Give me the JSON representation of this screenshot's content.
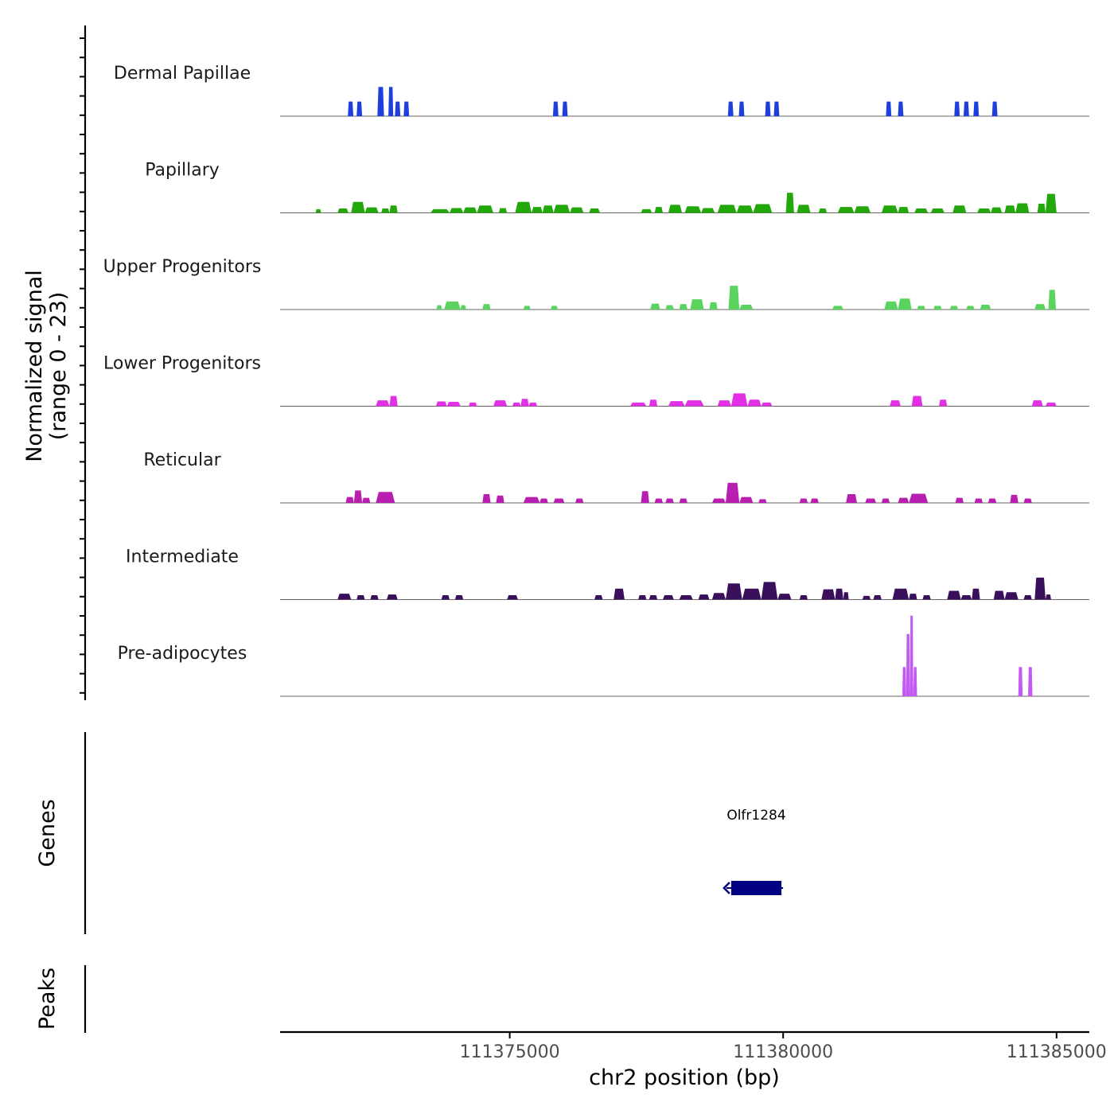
{
  "chart_data": {
    "type": "area",
    "title": "",
    "chromosome": "chr2",
    "xlabel": "chr2 position (bp)",
    "ylabel": "Normalized signal",
    "ylabel_range": "(range 0 - 23)",
    "ylim": [
      0,
      23
    ],
    "xlim": [
      111370800,
      111385600
    ],
    "x_ticks": [
      111375000,
      111380000,
      111385000
    ],
    "x_tick_labels": [
      "111375000",
      "111380000",
      "111385000"
    ],
    "tracks": [
      {
        "name": "Dermal Papillae",
        "color": "#1f3fdc",
        "peaks": [
          [
            111372040,
            111372140,
            4
          ],
          [
            111372200,
            111372300,
            4
          ],
          [
            111372580,
            111372700,
            8
          ],
          [
            111372780,
            111372870,
            8
          ],
          [
            111372900,
            111373000,
            4
          ],
          [
            111373060,
            111373160,
            4
          ],
          [
            111375790,
            111375890,
            4
          ],
          [
            111375960,
            111376060,
            4
          ],
          [
            111378990,
            111379090,
            4
          ],
          [
            111379190,
            111379290,
            4
          ],
          [
            111379670,
            111379770,
            4
          ],
          [
            111379830,
            111379930,
            4
          ],
          [
            111381880,
            111381980,
            4
          ],
          [
            111382100,
            111382200,
            4
          ],
          [
            111383130,
            111383230,
            4
          ],
          [
            111383300,
            111383400,
            4
          ],
          [
            111383480,
            111383580,
            4
          ],
          [
            111383820,
            111383920,
            4
          ]
        ]
      },
      {
        "name": "Papillary",
        "color": "#22a80a",
        "peaks": [
          [
            111371450,
            111371550,
            1
          ],
          [
            111371850,
            111372050,
            1.2
          ],
          [
            111372100,
            111372350,
            3
          ],
          [
            111372350,
            111372600,
            1.5
          ],
          [
            111372650,
            111372800,
            1.2
          ],
          [
            111372800,
            111372950,
            2
          ],
          [
            111373550,
            111373900,
            1
          ],
          [
            111373900,
            111374150,
            1.3
          ],
          [
            111374150,
            111374400,
            1.5
          ],
          [
            111374400,
            111374700,
            2
          ],
          [
            111374800,
            111374950,
            1.3
          ],
          [
            111375100,
            111375400,
            3
          ],
          [
            111375400,
            111375600,
            1.6
          ],
          [
            111375600,
            111375800,
            2
          ],
          [
            111375800,
            111376100,
            2.2
          ],
          [
            111376100,
            111376350,
            1.5
          ],
          [
            111376450,
            111376650,
            1.2
          ],
          [
            111377400,
            111377600,
            1
          ],
          [
            111377650,
            111377800,
            1.6
          ],
          [
            111377900,
            111378150,
            2.2
          ],
          [
            111378200,
            111378500,
            1.8
          ],
          [
            111378500,
            111378750,
            1.3
          ],
          [
            111378800,
            111379150,
            2.2
          ],
          [
            111379150,
            111379450,
            2
          ],
          [
            111379450,
            111379800,
            2.4
          ],
          [
            111380050,
            111380200,
            5.5
          ],
          [
            111380250,
            111380500,
            2.2
          ],
          [
            111380650,
            111380800,
            1.2
          ],
          [
            111381000,
            111381300,
            1.6
          ],
          [
            111381300,
            111381600,
            1.8
          ],
          [
            111381800,
            111382100,
            2
          ],
          [
            111382100,
            111382300,
            1.6
          ],
          [
            111382400,
            111382650,
            1.2
          ],
          [
            111382700,
            111382950,
            1.2
          ],
          [
            111383100,
            111383350,
            2
          ],
          [
            111383550,
            111383800,
            1.2
          ],
          [
            111383800,
            111384000,
            1.5
          ],
          [
            111384050,
            111384250,
            2
          ],
          [
            111384250,
            111384500,
            2.6
          ],
          [
            111384650,
            111384800,
            2.5
          ],
          [
            111384800,
            111385000,
            5.2
          ]
        ]
      },
      {
        "name": "Upper Progenitors",
        "color": "#5ad45e",
        "peaks": [
          [
            111373660,
            111373760,
            1.2
          ],
          [
            111373800,
            111374100,
            2.2
          ],
          [
            111374100,
            111374200,
            1.2
          ],
          [
            111374500,
            111374650,
            1.5
          ],
          [
            111375250,
            111375380,
            1
          ],
          [
            111375750,
            111375880,
            1
          ],
          [
            111377570,
            111377750,
            1.6
          ],
          [
            111377850,
            111378000,
            1.2
          ],
          [
            111378100,
            111378250,
            1.5
          ],
          [
            111378300,
            111378550,
            2.8
          ],
          [
            111378650,
            111378800,
            2
          ],
          [
            111379000,
            111379200,
            6.5
          ],
          [
            111379200,
            111379450,
            1.3
          ],
          [
            111380900,
            111381100,
            1
          ],
          [
            111381850,
            111382100,
            2.2
          ],
          [
            111382100,
            111382350,
            3
          ],
          [
            111382450,
            111382600,
            1
          ],
          [
            111382750,
            111382900,
            1
          ],
          [
            111383050,
            111383200,
            1
          ],
          [
            111383350,
            111383500,
            1
          ],
          [
            111383600,
            111383800,
            1.3
          ],
          [
            111384600,
            111384800,
            1.5
          ],
          [
            111384850,
            111384990,
            5.4
          ]
        ]
      },
      {
        "name": "Lower Progenitors",
        "color": "#e32fe6",
        "peaks": [
          [
            111372550,
            111372800,
            1.6
          ],
          [
            111372800,
            111372950,
            2.8
          ],
          [
            111373650,
            111373850,
            1.3
          ],
          [
            111373850,
            111374100,
            1.2
          ],
          [
            111374250,
            111374400,
            1
          ],
          [
            111374700,
            111374950,
            1.6
          ],
          [
            111375050,
            111375200,
            1
          ],
          [
            111375200,
            111375350,
            2
          ],
          [
            111375350,
            111375500,
            1
          ],
          [
            111377200,
            111377500,
            1
          ],
          [
            111377550,
            111377700,
            1.8
          ],
          [
            111377900,
            111378200,
            1.4
          ],
          [
            111378200,
            111378550,
            1.6
          ],
          [
            111378800,
            111379050,
            1.6
          ],
          [
            111379050,
            111379350,
            3.5
          ],
          [
            111379350,
            111379600,
            1.8
          ],
          [
            111379600,
            111379800,
            1
          ],
          [
            111381950,
            111382150,
            1.6
          ],
          [
            111382350,
            111382550,
            2.8
          ],
          [
            111382850,
            111383000,
            1.8
          ],
          [
            111384550,
            111384750,
            1.6
          ],
          [
            111384800,
            111385000,
            1
          ]
        ]
      },
      {
        "name": "Reticular",
        "color": "#b81fb0",
        "peaks": [
          [
            111372000,
            111372150,
            1.6
          ],
          [
            111372150,
            111372300,
            3.4
          ],
          [
            111372300,
            111372450,
            1.4
          ],
          [
            111372550,
            111372900,
            3
          ],
          [
            111374500,
            111374650,
            2.4
          ],
          [
            111374750,
            111374900,
            2
          ],
          [
            111375250,
            111375550,
            1.6
          ],
          [
            111375550,
            111375700,
            1.2
          ],
          [
            111375800,
            111376000,
            1.2
          ],
          [
            111376200,
            111376350,
            1.2
          ],
          [
            111377400,
            111377550,
            3.2
          ],
          [
            111377650,
            111377800,
            1.2
          ],
          [
            111377850,
            111378000,
            1.2
          ],
          [
            111378100,
            111378250,
            1.2
          ],
          [
            111378700,
            111378950,
            1.2
          ],
          [
            111378950,
            111379200,
            5.5
          ],
          [
            111379200,
            111379450,
            1.6
          ],
          [
            111379550,
            111379700,
            1
          ],
          [
            111380300,
            111380450,
            1.2
          ],
          [
            111380500,
            111380650,
            1.2
          ],
          [
            111381150,
            111381350,
            2.4
          ],
          [
            111381500,
            111381700,
            1.2
          ],
          [
            111381800,
            111381950,
            1.2
          ],
          [
            111382100,
            111382300,
            1.4
          ],
          [
            111382300,
            111382650,
            2.5
          ],
          [
            111383150,
            111383300,
            1.4
          ],
          [
            111383500,
            111383650,
            1.2
          ],
          [
            111383750,
            111383900,
            1.2
          ],
          [
            111384150,
            111384300,
            2.2
          ],
          [
            111384400,
            111384550,
            1.2
          ]
        ]
      },
      {
        "name": "Intermediate",
        "color": "#3a0f5c",
        "peaks": [
          [
            111371850,
            111372100,
            1.6
          ],
          [
            111372200,
            111372350,
            1.2
          ],
          [
            111372450,
            111372600,
            1.2
          ],
          [
            111372750,
            111372950,
            1.4
          ],
          [
            111373750,
            111373900,
            1.2
          ],
          [
            111374000,
            111374150,
            1.2
          ],
          [
            111374950,
            111375150,
            1.2
          ],
          [
            111376550,
            111376700,
            1.2
          ],
          [
            111376900,
            111377100,
            3
          ],
          [
            111377350,
            111377500,
            1.2
          ],
          [
            111377550,
            111377700,
            1.2
          ],
          [
            111377800,
            111378000,
            1.2
          ],
          [
            111378100,
            111378350,
            1.2
          ],
          [
            111378450,
            111378650,
            1.4
          ],
          [
            111378700,
            111378950,
            1.8
          ],
          [
            111378950,
            111379250,
            4.4
          ],
          [
            111379250,
            111379600,
            3
          ],
          [
            111379600,
            111379900,
            4.8
          ],
          [
            111379900,
            111380150,
            1.6
          ],
          [
            111380300,
            111380450,
            1.2
          ],
          [
            111380700,
            111380950,
            2.8
          ],
          [
            111380950,
            111381100,
            3
          ],
          [
            111381100,
            111381200,
            2
          ],
          [
            111381450,
            111381600,
            1
          ],
          [
            111381650,
            111381800,
            1.2
          ],
          [
            111382000,
            111382300,
            3
          ],
          [
            111382300,
            111382450,
            1.6
          ],
          [
            111382550,
            111382700,
            1.2
          ],
          [
            111383000,
            111383250,
            2.4
          ],
          [
            111383250,
            111383450,
            1.2
          ],
          [
            111383450,
            111383600,
            3
          ],
          [
            111383850,
            111384050,
            2.4
          ],
          [
            111384050,
            111384300,
            2
          ],
          [
            111384400,
            111384550,
            1.2
          ],
          [
            111384600,
            111384800,
            6
          ],
          [
            111384800,
            111384900,
            1.4
          ]
        ]
      },
      {
        "name": "Pre-adipocytes",
        "color": "#c35af5",
        "peaks": [
          [
            111382180,
            111382250,
            8
          ],
          [
            111382250,
            111382320,
            17
          ],
          [
            111382320,
            111382380,
            22
          ],
          [
            111382380,
            111382450,
            8
          ],
          [
            111384300,
            111384380,
            8
          ],
          [
            111384480,
            111384560,
            8
          ]
        ]
      }
    ],
    "genes_track": {
      "label": "Genes",
      "genes": [
        {
          "name": "Olfr1284",
          "start": 111379050,
          "end": 111379970,
          "strand": "-",
          "color": "#000080"
        }
      ]
    },
    "peaks_track": {
      "label": "Peaks",
      "peaks": []
    }
  }
}
